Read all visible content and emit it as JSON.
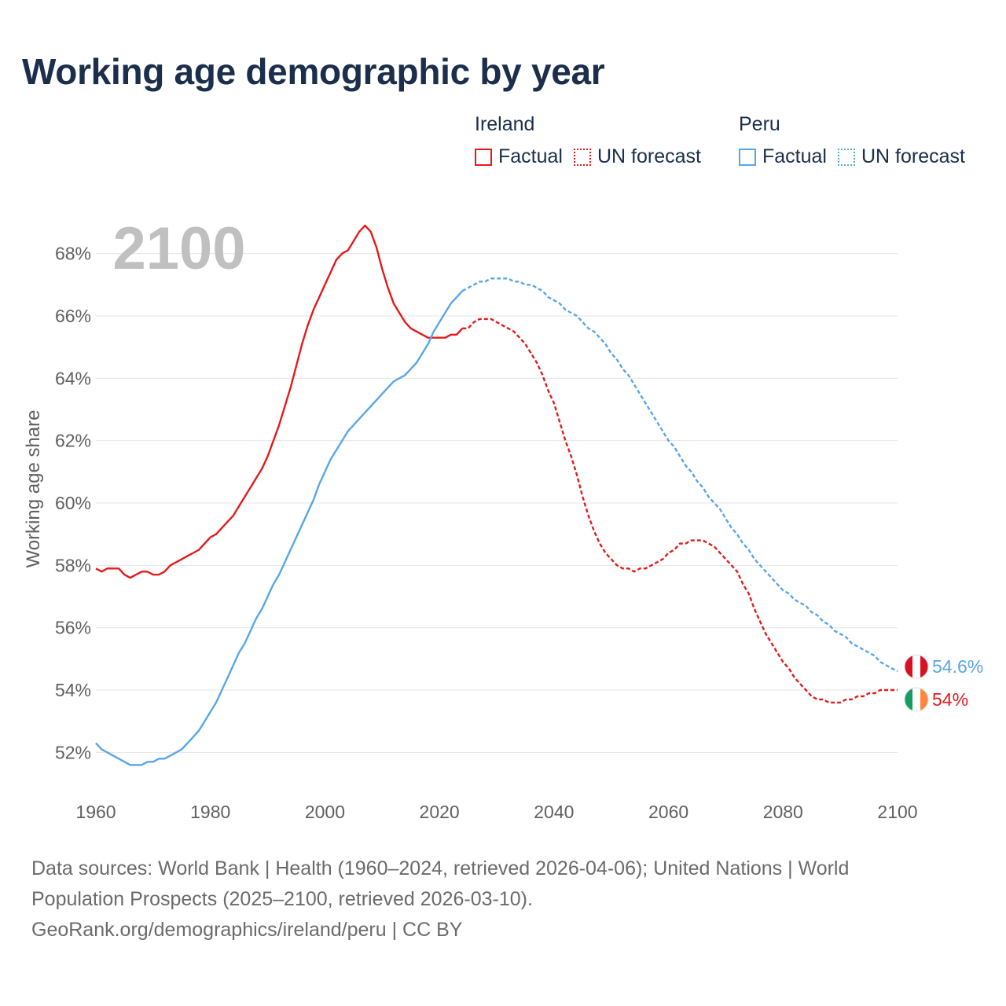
{
  "title": "Working age demographic by year",
  "colors": {
    "ireland": "#e41a1c",
    "peru": "#5aa6e6",
    "grid": "#e4e4e4",
    "axis_text": "#606060",
    "title": "#1b2e4b",
    "year_watermark": "#c0c0c0"
  },
  "legend": {
    "groups": [
      {
        "name": "Ireland",
        "items": [
          {
            "label": "Factual",
            "style": "solid"
          },
          {
            "label": "UN forecast",
            "style": "dotted"
          }
        ]
      },
      {
        "name": "Peru",
        "items": [
          {
            "label": "Factual",
            "style": "solid"
          },
          {
            "label": "UN forecast",
            "style": "dotted"
          }
        ]
      }
    ]
  },
  "footer": {
    "line1": "Data sources: World Bank | Health (1960–2024, retrieved 2026-04-06); United Nations | World",
    "line2": "Population Prospects (2025–2100, retrieved 2026-03-10).",
    "line3": "GeoRank.org/demographics/ireland/peru | CC BY"
  },
  "chart_data": {
    "type": "line",
    "title": "Working age demographic by year",
    "xlabel": "",
    "ylabel": "Working age share",
    "year_label": "2100",
    "xlim": [
      1960,
      2100
    ],
    "ylim": [
      50.8,
      69.2
    ],
    "x_ticks": [
      "1960",
      "1980",
      "2000",
      "2020",
      "2040",
      "2060",
      "2080",
      "2100"
    ],
    "y_ticks": [
      "52%",
      "54%",
      "56%",
      "58%",
      "60%",
      "62%",
      "64%",
      "66%",
      "68%"
    ],
    "forecast_start_year": 2024,
    "series": [
      {
        "name": "Ireland",
        "color_key": "ireland",
        "end_label": "54%",
        "flag": "ireland-flag",
        "points": [
          [
            1960,
            57.9
          ],
          [
            1961,
            57.8
          ],
          [
            1962,
            57.9
          ],
          [
            1963,
            57.9
          ],
          [
            1964,
            57.9
          ],
          [
            1965,
            57.7
          ],
          [
            1966,
            57.6
          ],
          [
            1967,
            57.7
          ],
          [
            1968,
            57.8
          ],
          [
            1969,
            57.8
          ],
          [
            1970,
            57.7
          ],
          [
            1971,
            57.7
          ],
          [
            1972,
            57.8
          ],
          [
            1973,
            58.0
          ],
          [
            1974,
            58.1
          ],
          [
            1975,
            58.2
          ],
          [
            1976,
            58.3
          ],
          [
            1977,
            58.4
          ],
          [
            1978,
            58.5
          ],
          [
            1979,
            58.7
          ],
          [
            1980,
            58.9
          ],
          [
            1981,
            59.0
          ],
          [
            1982,
            59.2
          ],
          [
            1983,
            59.4
          ],
          [
            1984,
            59.6
          ],
          [
            1985,
            59.9
          ],
          [
            1986,
            60.2
          ],
          [
            1987,
            60.5
          ],
          [
            1988,
            60.8
          ],
          [
            1989,
            61.1
          ],
          [
            1990,
            61.5
          ],
          [
            1991,
            62.0
          ],
          [
            1992,
            62.5
          ],
          [
            1993,
            63.1
          ],
          [
            1994,
            63.7
          ],
          [
            1995,
            64.4
          ],
          [
            1996,
            65.1
          ],
          [
            1997,
            65.7
          ],
          [
            1998,
            66.2
          ],
          [
            1999,
            66.6
          ],
          [
            2000,
            67.0
          ],
          [
            2001,
            67.4
          ],
          [
            2002,
            67.8
          ],
          [
            2003,
            68.0
          ],
          [
            2004,
            68.1
          ],
          [
            2005,
            68.4
          ],
          [
            2006,
            68.7
          ],
          [
            2007,
            68.9
          ],
          [
            2008,
            68.7
          ],
          [
            2009,
            68.2
          ],
          [
            2010,
            67.5
          ],
          [
            2011,
            66.9
          ],
          [
            2012,
            66.4
          ],
          [
            2013,
            66.1
          ],
          [
            2014,
            65.8
          ],
          [
            2015,
            65.6
          ],
          [
            2016,
            65.5
          ],
          [
            2017,
            65.4
          ],
          [
            2018,
            65.3
          ],
          [
            2019,
            65.3
          ],
          [
            2020,
            65.3
          ],
          [
            2021,
            65.3
          ],
          [
            2022,
            65.4
          ],
          [
            2023,
            65.4
          ],
          [
            2024,
            65.6
          ],
          [
            2025,
            65.6
          ],
          [
            2026,
            65.8
          ],
          [
            2027,
            65.9
          ],
          [
            2028,
            65.9
          ],
          [
            2029,
            65.9
          ],
          [
            2030,
            65.8
          ],
          [
            2031,
            65.7
          ],
          [
            2032,
            65.6
          ],
          [
            2033,
            65.5
          ],
          [
            2034,
            65.3
          ],
          [
            2035,
            65.1
          ],
          [
            2036,
            64.8
          ],
          [
            2037,
            64.5
          ],
          [
            2038,
            64.1
          ],
          [
            2039,
            63.6
          ],
          [
            2040,
            63.2
          ],
          [
            2041,
            62.6
          ],
          [
            2042,
            62.0
          ],
          [
            2043,
            61.5
          ],
          [
            2044,
            60.9
          ],
          [
            2045,
            60.2
          ],
          [
            2046,
            59.6
          ],
          [
            2047,
            59.1
          ],
          [
            2048,
            58.7
          ],
          [
            2049,
            58.4
          ],
          [
            2050,
            58.2
          ],
          [
            2051,
            58.0
          ],
          [
            2052,
            57.9
          ],
          [
            2053,
            57.9
          ],
          [
            2054,
            57.8
          ],
          [
            2055,
            57.9
          ],
          [
            2056,
            57.9
          ],
          [
            2057,
            58.0
          ],
          [
            2058,
            58.1
          ],
          [
            2059,
            58.2
          ],
          [
            2060,
            58.4
          ],
          [
            2061,
            58.5
          ],
          [
            2062,
            58.7
          ],
          [
            2063,
            58.7
          ],
          [
            2064,
            58.8
          ],
          [
            2065,
            58.8
          ],
          [
            2066,
            58.8
          ],
          [
            2067,
            58.7
          ],
          [
            2068,
            58.6
          ],
          [
            2069,
            58.4
          ],
          [
            2070,
            58.2
          ],
          [
            2071,
            58.0
          ],
          [
            2072,
            57.8
          ],
          [
            2073,
            57.4
          ],
          [
            2074,
            57.1
          ],
          [
            2075,
            56.6
          ],
          [
            2076,
            56.2
          ],
          [
            2077,
            55.8
          ],
          [
            2078,
            55.5
          ],
          [
            2079,
            55.2
          ],
          [
            2080,
            54.9
          ],
          [
            2081,
            54.7
          ],
          [
            2082,
            54.4
          ],
          [
            2083,
            54.2
          ],
          [
            2084,
            54.0
          ],
          [
            2085,
            53.8
          ],
          [
            2086,
            53.7
          ],
          [
            2087,
            53.7
          ],
          [
            2088,
            53.6
          ],
          [
            2089,
            53.6
          ],
          [
            2090,
            53.6
          ],
          [
            2091,
            53.7
          ],
          [
            2092,
            53.7
          ],
          [
            2093,
            53.8
          ],
          [
            2094,
            53.8
          ],
          [
            2095,
            53.9
          ],
          [
            2096,
            53.9
          ],
          [
            2097,
            54.0
          ],
          [
            2098,
            54.0
          ],
          [
            2099,
            54.0
          ],
          [
            2100,
            54.0
          ]
        ]
      },
      {
        "name": "Peru",
        "color_key": "peru",
        "end_label": "54.6%",
        "flag": "peru-flag",
        "points": [
          [
            1960,
            52.3
          ],
          [
            1961,
            52.1
          ],
          [
            1962,
            52.0
          ],
          [
            1963,
            51.9
          ],
          [
            1964,
            51.8
          ],
          [
            1965,
            51.7
          ],
          [
            1966,
            51.6
          ],
          [
            1967,
            51.6
          ],
          [
            1968,
            51.6
          ],
          [
            1969,
            51.7
          ],
          [
            1970,
            51.7
          ],
          [
            1971,
            51.8
          ],
          [
            1972,
            51.8
          ],
          [
            1973,
            51.9
          ],
          [
            1974,
            52.0
          ],
          [
            1975,
            52.1
          ],
          [
            1976,
            52.3
          ],
          [
            1977,
            52.5
          ],
          [
            1978,
            52.7
          ],
          [
            1979,
            53.0
          ],
          [
            1980,
            53.3
          ],
          [
            1981,
            53.6
          ],
          [
            1982,
            54.0
          ],
          [
            1983,
            54.4
          ],
          [
            1984,
            54.8
          ],
          [
            1985,
            55.2
          ],
          [
            1986,
            55.5
          ],
          [
            1987,
            55.9
          ],
          [
            1988,
            56.3
          ],
          [
            1989,
            56.6
          ],
          [
            1990,
            57.0
          ],
          [
            1991,
            57.4
          ],
          [
            1992,
            57.7
          ],
          [
            1993,
            58.1
          ],
          [
            1994,
            58.5
          ],
          [
            1995,
            58.9
          ],
          [
            1996,
            59.3
          ],
          [
            1997,
            59.7
          ],
          [
            1998,
            60.1
          ],
          [
            1999,
            60.6
          ],
          [
            2000,
            61.0
          ],
          [
            2001,
            61.4
          ],
          [
            2002,
            61.7
          ],
          [
            2003,
            62.0
          ],
          [
            2004,
            62.3
          ],
          [
            2005,
            62.5
          ],
          [
            2006,
            62.7
          ],
          [
            2007,
            62.9
          ],
          [
            2008,
            63.1
          ],
          [
            2009,
            63.3
          ],
          [
            2010,
            63.5
          ],
          [
            2011,
            63.7
          ],
          [
            2012,
            63.9
          ],
          [
            2013,
            64.0
          ],
          [
            2014,
            64.1
          ],
          [
            2015,
            64.3
          ],
          [
            2016,
            64.5
          ],
          [
            2017,
            64.8
          ],
          [
            2018,
            65.1
          ],
          [
            2019,
            65.5
          ],
          [
            2020,
            65.8
          ],
          [
            2021,
            66.1
          ],
          [
            2022,
            66.4
          ],
          [
            2023,
            66.6
          ],
          [
            2024,
            66.8
          ],
          [
            2025,
            66.9
          ],
          [
            2026,
            67.0
          ],
          [
            2027,
            67.1
          ],
          [
            2028,
            67.1
          ],
          [
            2029,
            67.2
          ],
          [
            2030,
            67.2
          ],
          [
            2031,
            67.2
          ],
          [
            2032,
            67.2
          ],
          [
            2033,
            67.1
          ],
          [
            2034,
            67.1
          ],
          [
            2035,
            67.0
          ],
          [
            2036,
            67.0
          ],
          [
            2037,
            66.9
          ],
          [
            2038,
            66.8
          ],
          [
            2039,
            66.6
          ],
          [
            2040,
            66.5
          ],
          [
            2041,
            66.4
          ],
          [
            2042,
            66.2
          ],
          [
            2043,
            66.1
          ],
          [
            2044,
            66.0
          ],
          [
            2045,
            65.8
          ],
          [
            2046,
            65.6
          ],
          [
            2047,
            65.5
          ],
          [
            2048,
            65.3
          ],
          [
            2049,
            65.1
          ],
          [
            2050,
            64.8
          ],
          [
            2051,
            64.6
          ],
          [
            2052,
            64.3
          ],
          [
            2053,
            64.1
          ],
          [
            2054,
            63.8
          ],
          [
            2055,
            63.5
          ],
          [
            2056,
            63.2
          ],
          [
            2057,
            62.9
          ],
          [
            2058,
            62.6
          ],
          [
            2059,
            62.3
          ],
          [
            2060,
            62.0
          ],
          [
            2061,
            61.8
          ],
          [
            2062,
            61.5
          ],
          [
            2063,
            61.2
          ],
          [
            2064,
            61.0
          ],
          [
            2065,
            60.7
          ],
          [
            2066,
            60.5
          ],
          [
            2067,
            60.2
          ],
          [
            2068,
            60.0
          ],
          [
            2069,
            59.8
          ],
          [
            2070,
            59.5
          ],
          [
            2071,
            59.2
          ],
          [
            2072,
            59.0
          ],
          [
            2073,
            58.7
          ],
          [
            2074,
            58.5
          ],
          [
            2075,
            58.2
          ],
          [
            2076,
            58.0
          ],
          [
            2077,
            57.8
          ],
          [
            2078,
            57.6
          ],
          [
            2079,
            57.4
          ],
          [
            2080,
            57.2
          ],
          [
            2081,
            57.1
          ],
          [
            2082,
            56.9
          ],
          [
            2083,
            56.8
          ],
          [
            2084,
            56.7
          ],
          [
            2085,
            56.5
          ],
          [
            2086,
            56.4
          ],
          [
            2087,
            56.2
          ],
          [
            2088,
            56.1
          ],
          [
            2089,
            55.9
          ],
          [
            2090,
            55.8
          ],
          [
            2091,
            55.7
          ],
          [
            2092,
            55.5
          ],
          [
            2093,
            55.4
          ],
          [
            2094,
            55.3
          ],
          [
            2095,
            55.2
          ],
          [
            2096,
            55.1
          ],
          [
            2097,
            54.9
          ],
          [
            2098,
            54.8
          ],
          [
            2099,
            54.7
          ],
          [
            2100,
            54.6
          ]
        ]
      }
    ]
  }
}
